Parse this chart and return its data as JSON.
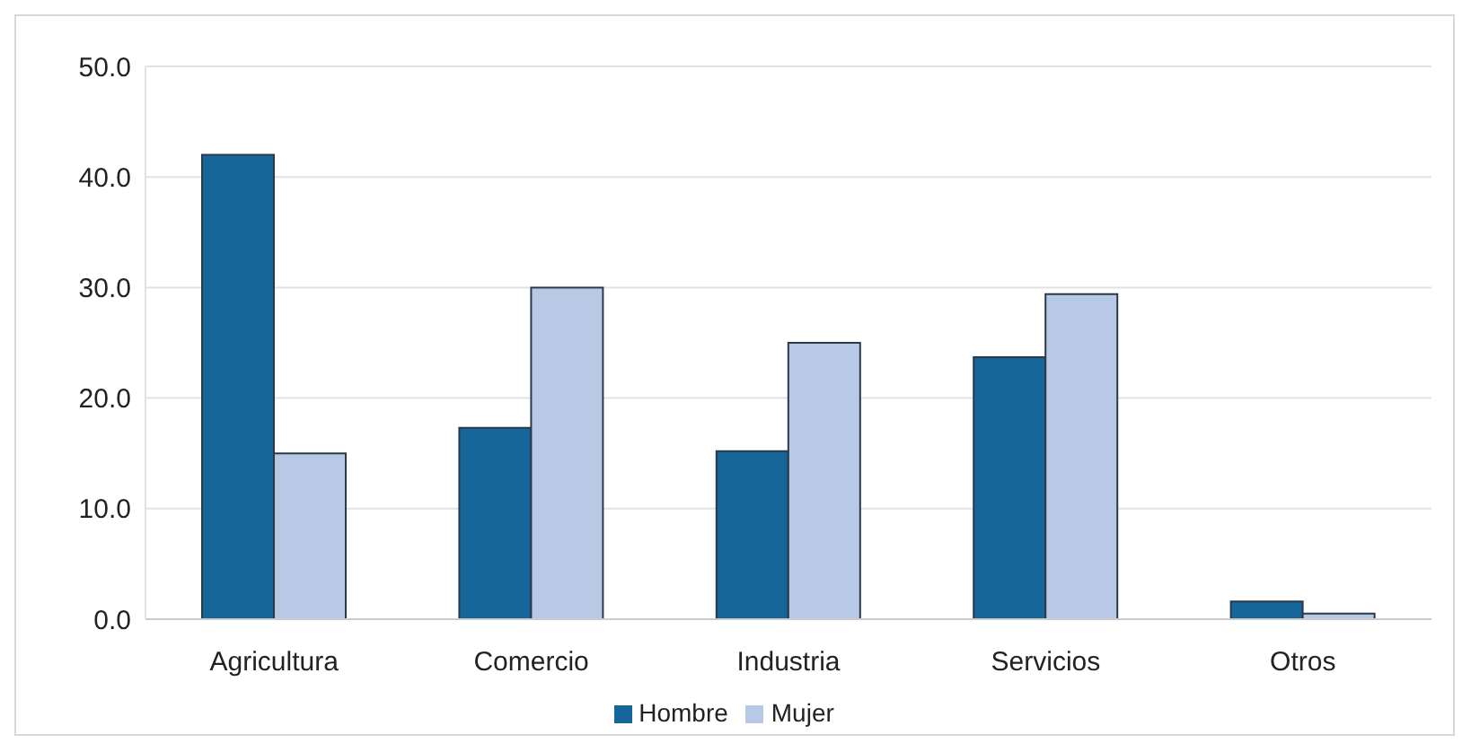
{
  "chart_data": {
    "type": "bar",
    "categories": [
      "Agricultura",
      "Comercio",
      "Industria",
      "Servicios",
      "Otros"
    ],
    "series": [
      {
        "name": "Hombre",
        "color": "#16669a",
        "values": [
          42.0,
          17.3,
          15.2,
          23.7,
          1.6
        ]
      },
      {
        "name": "Mujer",
        "color": "#b8c9e5",
        "values": [
          15.0,
          30.0,
          25.0,
          29.4,
          0.5
        ]
      }
    ],
    "ylim": [
      0,
      50
    ],
    "yticks": [
      {
        "value": 0,
        "label": "0.0"
      },
      {
        "value": 10,
        "label": "10.0"
      },
      {
        "value": 20,
        "label": "20.0"
      },
      {
        "value": 30,
        "label": "30.0"
      },
      {
        "value": 40,
        "label": "40.0"
      },
      {
        "value": 50,
        "label": "50.0"
      }
    ],
    "grid": "y",
    "legend": "bottom"
  }
}
